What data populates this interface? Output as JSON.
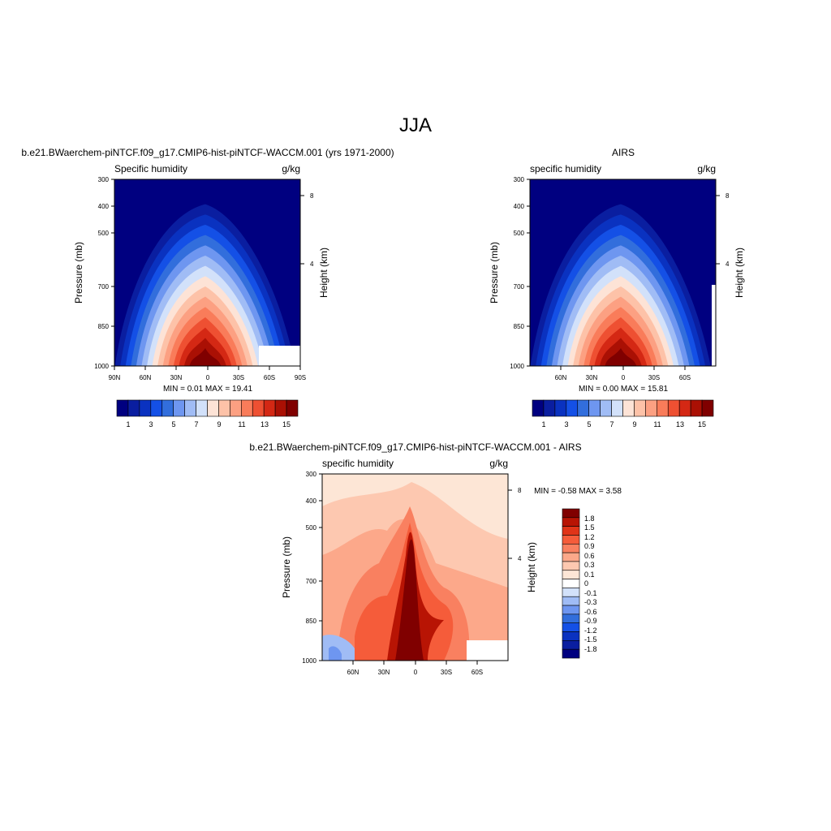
{
  "figure": {
    "title": "JJA",
    "difference_title": "b.e21.BWaerchem-piNTCF.f09_g17.CMIP6-hist-piNTCF-WACCM.001 - AIRS"
  },
  "colors": {
    "abs_palette": [
      "#000080",
      "#0a1ea0",
      "#0a32c0",
      "#1450e6",
      "#326edc",
      "#6e96f0",
      "#a0bcf5",
      "#d2e1fa",
      "#fde3d6",
      "#fdc2a8",
      "#fca082",
      "#f97c5a",
      "#ee5032",
      "#d42814",
      "#aa1004",
      "#800000"
    ],
    "diff_palette": [
      "#000080",
      "#0a1ea0",
      "#0a32c0",
      "#1450e6",
      "#326edc",
      "#6e96f0",
      "#a0bcf5",
      "#d2e1fa",
      "#ffffff",
      "#fde6d6",
      "#fdc8b0",
      "#fca88a",
      "#f98060",
      "#f55c3a",
      "#e03418",
      "#b81404",
      "#800000"
    ]
  },
  "chart_data": [
    {
      "type": "contour",
      "id": "model",
      "title": "b.e21.BWaerchem-piNTCF.f09_g17.CMIP6-hist-piNTCF-WACCM.001 (yrs 1971-2000)",
      "left_string": "Specific humidity",
      "right_string": "g/kg",
      "ylabel": "Pressure (mb)",
      "y2label": "Height (km)",
      "y_ticks": [
        "300",
        "400",
        "500",
        "700",
        "850",
        "1000"
      ],
      "y2_ticks": [
        "8",
        "4"
      ],
      "x_ticks": [
        "90N",
        "60N",
        "30N",
        "0",
        "30S",
        "60S",
        "90S"
      ],
      "min_max": "MIN =   0.01  MAX =  19.41",
      "colorbar_labels": [
        "1",
        "3",
        "5",
        "7",
        "9",
        "11",
        "13",
        "15"
      ]
    },
    {
      "type": "contour",
      "id": "airs",
      "title": "AIRS",
      "left_string": "specific humidity",
      "right_string": "g/kg",
      "ylabel": "Pressure (mb)",
      "y2label": "Height (km)",
      "y_ticks": [
        "300",
        "400",
        "500",
        "700",
        "850",
        "1000"
      ],
      "y2_ticks": [
        "8",
        "4"
      ],
      "x_ticks": [
        "60N",
        "30N",
        "0",
        "30S",
        "60S"
      ],
      "min_max": "MIN =   0.00  MAX =  15.81",
      "colorbar_labels": [
        "1",
        "3",
        "5",
        "7",
        "9",
        "11",
        "13",
        "15"
      ]
    },
    {
      "type": "contour",
      "id": "diff",
      "title": "",
      "left_string": "specific humidity",
      "right_string": "g/kg",
      "ylabel": "Pressure (mb)",
      "y2label": "Height (km)",
      "y_ticks": [
        "300",
        "400",
        "500",
        "700",
        "850",
        "1000"
      ],
      "y2_ticks": [
        "8",
        "4"
      ],
      "x_ticks": [
        "60N",
        "30N",
        "0",
        "30S",
        "60S"
      ],
      "min_max": "MIN =  -0.58  MAX =   3.58",
      "colorbar_labels": [
        "1.8",
        "1.5",
        "1.2",
        "0.9",
        "0.6",
        "0.3",
        "0.1",
        "0",
        "-0.1",
        "-0.3",
        "-0.6",
        "-0.9",
        "-1.2",
        "-1.5",
        "-1.8"
      ]
    }
  ]
}
